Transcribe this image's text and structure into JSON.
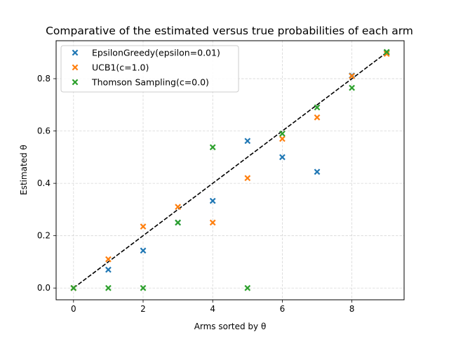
{
  "chart_data": {
    "type": "scatter",
    "title": "Comparative of the estimated versus true probabilities of each arm",
    "xlabel": "Arms sorted by θ",
    "ylabel": "Estimated θ",
    "xlim": [
      -0.5,
      9.5
    ],
    "ylim": [
      -0.045,
      0.945
    ],
    "xticks": [
      0,
      2,
      4,
      6,
      8
    ],
    "xtick_labels": [
      "0",
      "2",
      "4",
      "6",
      "8"
    ],
    "yticks": [
      0.0,
      0.2,
      0.4,
      0.6,
      0.8
    ],
    "ytick_labels": [
      "0.0",
      "0.2",
      "0.4",
      "0.6",
      "0.8"
    ],
    "grid": true,
    "legend_position": "top-left",
    "reference_line": {
      "style": "dashed",
      "color": "#000000",
      "x": [
        0,
        9
      ],
      "y": [
        0.0,
        0.9
      ]
    },
    "series": [
      {
        "name": "EpsilonGreedy(epsilon=0.01)",
        "color": "#1f77b4",
        "marker": "x",
        "x": [
          0,
          1,
          2,
          3,
          4,
          5,
          6,
          7,
          8,
          9
        ],
        "y": [
          0.0,
          0.07,
          0.143,
          0.25,
          0.333,
          0.562,
          0.5,
          0.444,
          0.812,
          0.9
        ]
      },
      {
        "name": "UCB1(c=1.0)",
        "color": "#ff7f0e",
        "marker": "x",
        "x": [
          0,
          1,
          2,
          3,
          4,
          5,
          6,
          7,
          8,
          9
        ],
        "y": [
          0.0,
          0.11,
          0.235,
          0.31,
          0.25,
          0.42,
          0.57,
          0.652,
          0.81,
          0.895
        ]
      },
      {
        "name": "Thomson Sampling(c=0.0)",
        "color": "#2ca02c",
        "marker": "x",
        "x": [
          0,
          1,
          2,
          3,
          4,
          5,
          6,
          7,
          8,
          9
        ],
        "y": [
          0.0,
          0.0,
          0.0,
          0.25,
          0.538,
          0.0,
          0.59,
          0.69,
          0.765,
          0.902
        ]
      }
    ]
  }
}
